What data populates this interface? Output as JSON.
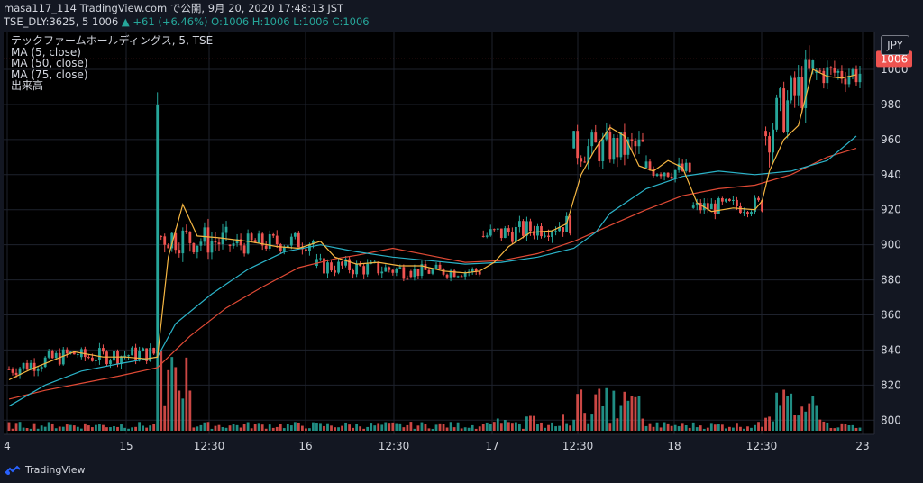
{
  "header": {
    "line1": "masa117_114 TradingView.com で公開, 9月 20, 2020 17:48:13 JST",
    "line2_symbol": "TSE_DLY:3625, 5 1006",
    "line2_change": "▲ +61 (+6.46%)",
    "line2_ohlc": "O:1006 H:1006 L:1006 C:1006"
  },
  "legend": {
    "title": "テックファームホールディングス, 5, TSE",
    "ma5": "MA (5, close)",
    "ma50": "MA (50, close)",
    "ma75": "MA (75, close)",
    "volume": "出来高"
  },
  "currency": "JPY",
  "footer_brand": "TradingView",
  "colors": {
    "up": "#26a69a",
    "down": "#ef5350",
    "ma5": "#f5b642",
    "ma50": "#2bb3c8",
    "ma75": "#e04a35",
    "price_tag": "#ef5350"
  },
  "chart_data": {
    "type": "candlestick",
    "x_ticks": [
      "4",
      "15",
      "12:30",
      "16",
      "12:30",
      "17",
      "12:30",
      "18",
      "12:30",
      "23"
    ],
    "y_ticks": [
      800,
      820,
      840,
      860,
      880,
      900,
      920,
      940,
      960,
      980,
      1000
    ],
    "ylim": [
      795,
      1018
    ],
    "last_price": 1006,
    "ma5_points": [
      [
        0,
        823
      ],
      [
        6,
        829
      ],
      [
        12,
        834
      ],
      [
        18,
        839
      ],
      [
        26,
        836
      ],
      [
        32,
        836
      ],
      [
        38,
        835
      ],
      [
        41,
        836
      ],
      [
        44,
        893
      ],
      [
        48,
        923
      ],
      [
        52,
        905
      ],
      [
        58,
        904
      ],
      [
        66,
        902
      ],
      [
        74,
        899
      ],
      [
        80,
        898
      ],
      [
        86,
        902
      ],
      [
        90,
        893
      ],
      [
        96,
        889
      ],
      [
        102,
        890
      ],
      [
        108,
        888
      ],
      [
        114,
        888
      ],
      [
        120,
        885
      ],
      [
        126,
        884
      ],
      [
        130,
        885
      ],
      [
        134,
        890
      ],
      [
        138,
        899
      ],
      [
        144,
        907
      ],
      [
        150,
        908
      ],
      [
        154,
        912
      ],
      [
        158,
        940
      ],
      [
        162,
        955
      ],
      [
        166,
        967
      ],
      [
        170,
        962
      ],
      [
        174,
        945
      ],
      [
        178,
        942
      ],
      [
        182,
        948
      ],
      [
        186,
        944
      ],
      [
        190,
        924
      ],
      [
        194,
        919
      ],
      [
        200,
        921
      ],
      [
        206,
        920
      ],
      [
        208,
        925
      ],
      [
        210,
        942
      ],
      [
        214,
        960
      ],
      [
        218,
        968
      ],
      [
        222,
        1000
      ],
      [
        226,
        996
      ],
      [
        230,
        995
      ],
      [
        234,
        997
      ]
    ],
    "ma50_points": [
      [
        0,
        808
      ],
      [
        10,
        820
      ],
      [
        20,
        828
      ],
      [
        30,
        832
      ],
      [
        41,
        836
      ],
      [
        46,
        855
      ],
      [
        56,
        872
      ],
      [
        66,
        886
      ],
      [
        76,
        896
      ],
      [
        86,
        900
      ],
      [
        96,
        896
      ],
      [
        106,
        893
      ],
      [
        116,
        891
      ],
      [
        126,
        889
      ],
      [
        136,
        890
      ],
      [
        146,
        893
      ],
      [
        156,
        898
      ],
      [
        162,
        907
      ],
      [
        166,
        918
      ],
      [
        176,
        932
      ],
      [
        186,
        939
      ],
      [
        196,
        942
      ],
      [
        206,
        940
      ],
      [
        216,
        942
      ],
      [
        226,
        948
      ],
      [
        234,
        962
      ]
    ],
    "ma75_points": [
      [
        0,
        812
      ],
      [
        10,
        817
      ],
      [
        20,
        821
      ],
      [
        30,
        825
      ],
      [
        41,
        830
      ],
      [
        50,
        848
      ],
      [
        60,
        864
      ],
      [
        70,
        876
      ],
      [
        80,
        887
      ],
      [
        90,
        892
      ],
      [
        96,
        894
      ],
      [
        106,
        898
      ],
      [
        116,
        894
      ],
      [
        126,
        890
      ],
      [
        136,
        891
      ],
      [
        146,
        895
      ],
      [
        156,
        902
      ],
      [
        166,
        911
      ],
      [
        176,
        920
      ],
      [
        186,
        928
      ],
      [
        196,
        932
      ],
      [
        206,
        934
      ],
      [
        216,
        940
      ],
      [
        226,
        950
      ],
      [
        234,
        955
      ]
    ],
    "candles": [
      {
        "range": [
          0,
          19
        ],
        "base": 829,
        "amp": 5,
        "trend": 0.5
      },
      {
        "range": [
          20,
          40
        ],
        "base": 836,
        "amp": 5,
        "trend": 0.1
      },
      {
        "spike": 41,
        "o": 838,
        "c": 980,
        "h": 987,
        "l": 830
      },
      {
        "range": [
          42,
          60
        ],
        "base": 905,
        "amp": 9,
        "trend": -0.2
      },
      {
        "range": [
          61,
          84
        ],
        "base": 900,
        "amp": 6,
        "trend": 0.1
      },
      {
        "range": [
          85,
          110
        ],
        "base": 888,
        "amp": 5,
        "trend": -0.1
      },
      {
        "range": [
          111,
          130
        ],
        "base": 885,
        "amp": 4,
        "trend": 0.0
      },
      {
        "range": [
          131,
          155
        ],
        "base": 905,
        "amp": 6,
        "trend": 0.3
      },
      {
        "range": [
          156,
          175
        ],
        "base": 955,
        "amp": 10,
        "trend": 0.0
      },
      {
        "range": [
          176,
          188
        ],
        "base": 944,
        "amp": 6,
        "trend": -0.2
      },
      {
        "range": [
          189,
          208
        ],
        "base": 921,
        "amp": 5,
        "trend": 0.1
      },
      {
        "range": [
          209,
          222
        ],
        "base": 965,
        "amp": 15,
        "trend": 2.5
      },
      {
        "range": [
          223,
          235
        ],
        "base": 998,
        "amp": 8,
        "trend": 0.0
      }
    ]
  }
}
